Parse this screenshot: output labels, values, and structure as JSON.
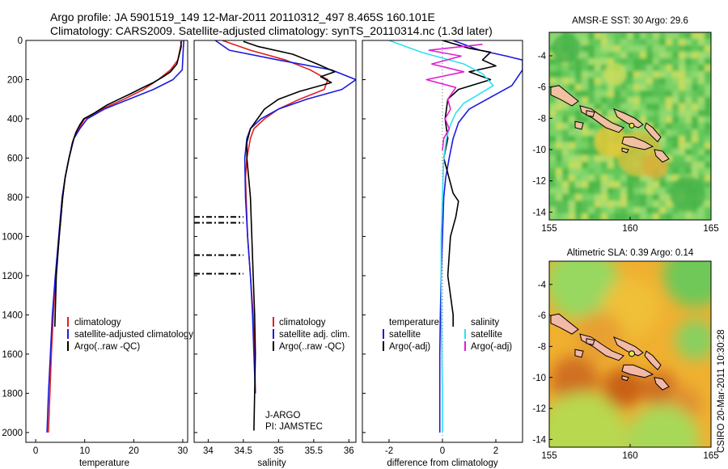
{
  "header": {
    "line1": "Argo profile: JA 5901519_149 12-Mar-2011 20110312_497 8.465S 160.101E",
    "line2": "Climatology: CARS2009. Satellite-adjusted climatology: synTS_20110314.nc (1.3d later)"
  },
  "credit": "CSIRO 20-Mar-2011 10:30:28",
  "colors": {
    "red": "#e02020",
    "blue": "#1a1ae0",
    "black": "#000000",
    "cyan": "#30e0f0",
    "magenta": "#e020d0"
  },
  "chart_data": [
    {
      "type": "line",
      "xlabel": "temperature",
      "xlim": [
        -2,
        31
      ],
      "ylim": [
        2050,
        0
      ],
      "xticks": [
        0,
        10,
        20,
        30
      ],
      "yticks": [
        0,
        200,
        400,
        600,
        800,
        1000,
        1200,
        1400,
        1600,
        1800,
        2000
      ],
      "legend": {
        "placement": "bottom-left",
        "entries": [
          "climatology",
          "satellite-adjusted climatology",
          "Argo(..raw -QC)"
        ]
      },
      "series": [
        {
          "name": "climatology",
          "color": "red",
          "x": [
            29.8,
            29.4,
            29.0,
            27.5,
            25.0,
            22.0,
            18.0,
            13.5,
            10.0,
            8.8,
            7.8,
            6.8,
            6.0,
            5.5,
            4.8,
            4.1,
            3.6,
            3.2,
            2.9,
            2.6
          ],
          "y": [
            0,
            50,
            100,
            150,
            200,
            250,
            300,
            350,
            400,
            450,
            500,
            600,
            700,
            800,
            1000,
            1200,
            1400,
            1600,
            1800,
            2000
          ]
        },
        {
          "name": "satellite-adjusted climatology",
          "color": "blue",
          "x": [
            30.2,
            30.1,
            30.0,
            29.9,
            28.0,
            24.0,
            19.0,
            14.0,
            10.5,
            9.0,
            7.8,
            6.8,
            6.0,
            5.4,
            4.7,
            4.0,
            3.4,
            3.0,
            2.6,
            2.3
          ],
          "y": [
            0,
            50,
            100,
            150,
            200,
            250,
            300,
            350,
            400,
            450,
            500,
            600,
            700,
            800,
            1000,
            1200,
            1400,
            1600,
            1800,
            2000
          ]
        },
        {
          "name": "Argo(..raw -QC)",
          "color": "black",
          "x": [
            29.6,
            29.7,
            29.3,
            28.8,
            27.5,
            26.0,
            24.0,
            21.5,
            19.5,
            17.0,
            14.5,
            12.0,
            9.8,
            9.0,
            8.2,
            7.5,
            6.8,
            6.0,
            5.5,
            4.8,
            4.2,
            3.9
          ],
          "y": [
            5,
            30,
            70,
            120,
            160,
            185,
            215,
            245,
            270,
            300,
            330,
            370,
            400,
            430,
            470,
            520,
            600,
            700,
            800,
            1000,
            1200,
            1460
          ]
        }
      ]
    },
    {
      "type": "line",
      "xlabel": "salinity",
      "xlim": [
        33.8,
        36.1
      ],
      "ylim": [
        2050,
        0
      ],
      "xticks": [
        34,
        34.5,
        35,
        35.5,
        36
      ],
      "legend": {
        "placement": "bottom-left",
        "entries": [
          "climatology",
          "satellite adj. clim.",
          "Argo(..raw -QC)"
        ]
      },
      "annotations": [
        "J-ARGO",
        "PI: JAMSTEC"
      ],
      "series": [
        {
          "name": "climatology",
          "color": "red",
          "x": [
            34.2,
            34.6,
            35.1,
            35.45,
            35.7,
            35.65,
            35.3,
            35.0,
            34.8,
            34.65,
            34.6,
            34.55,
            34.53,
            34.54,
            34.56,
            34.6,
            34.64,
            34.66,
            34.67
          ],
          "y": [
            0,
            50,
            100,
            150,
            200,
            250,
            300,
            350,
            400,
            450,
            500,
            600,
            700,
            800,
            1000,
            1200,
            1400,
            1600,
            1800
          ]
        },
        {
          "name": "satellite adj. clim.",
          "color": "blue",
          "x": [
            34.1,
            34.3,
            35.0,
            35.75,
            36.1,
            35.9,
            35.4,
            35.0,
            34.75,
            34.6,
            34.55,
            34.52,
            34.53,
            34.56,
            34.6,
            34.63,
            34.65,
            34.67
          ],
          "y": [
            0,
            50,
            100,
            150,
            200,
            250,
            300,
            350,
            400,
            450,
            500,
            600,
            800,
            1000,
            1200,
            1400,
            1600,
            1800
          ]
        },
        {
          "name": "Argo(..raw -QC)",
          "color": "black",
          "x": [
            34.5,
            34.7,
            35.2,
            35.55,
            35.8,
            35.6,
            35.75,
            35.3,
            35.0,
            34.8,
            34.7,
            34.6,
            34.55,
            34.55,
            34.6,
            34.62,
            34.64,
            34.66,
            34.67,
            34.66,
            34.65
          ],
          "y": [
            5,
            30,
            70,
            120,
            160,
            185,
            215,
            260,
            300,
            350,
            400,
            450,
            520,
            600,
            800,
            1000,
            1200,
            1400,
            1600,
            1800,
            1990
          ]
        }
      ],
      "flag_depths": [
        900,
        930,
        1095,
        1190
      ]
    },
    {
      "type": "line",
      "xlabel": "difference from climatology",
      "xlim": [
        -3,
        3
      ],
      "ylim": [
        2050,
        0
      ],
      "xticks": [
        -2,
        0,
        2
      ],
      "legend": {
        "placement": "bottom",
        "groups": [
          {
            "title": "temperature",
            "entries": [
              "satellite",
              "Argo(-adj)"
            ]
          },
          {
            "title": "salinity",
            "entries": [
              "satellite",
              "Argo(-adj)"
            ]
          }
        ]
      },
      "series": [
        {
          "name": "temperature satellite",
          "color": "blue",
          "x": [
            0.4,
            1.4,
            2.4,
            3.0,
            3.0,
            2.6,
            1.0,
            0.6,
            0.4,
            0.25,
            0.12,
            0.05,
            0.0,
            -0.05,
            -0.08,
            -0.1,
            -0.1,
            -0.1
          ],
          "y": [
            0,
            50,
            80,
            100,
            150,
            230,
            350,
            420,
            500,
            600,
            700,
            800,
            1000,
            1200,
            1400,
            1600,
            1800,
            2000
          ]
        },
        {
          "name": "temperature Argo(-adj)",
          "color": "black",
          "x": [
            0.0,
            1.0,
            1.8,
            1.5,
            2.0,
            1.0,
            1.8,
            0.6,
            0.2,
            0.1,
            0.2,
            0.05,
            0.4,
            0.6,
            0.5,
            0.3,
            0.2,
            0.4,
            0.4
          ],
          "y": [
            0,
            40,
            60,
            100,
            130,
            160,
            200,
            250,
            300,
            400,
            500,
            600,
            780,
            820,
            900,
            1000,
            1200,
            1400,
            1460
          ]
        },
        {
          "name": "salinity satellite",
          "color": "cyan",
          "x": [
            -2.0,
            -0.8,
            0.8,
            1.5,
            1.9,
            1.3,
            0.8,
            0.5,
            0.3,
            0.15,
            0.05,
            0.0,
            -0.05,
            -0.05,
            -0.03,
            0.0,
            0.0
          ],
          "y": [
            0,
            60,
            120,
            170,
            230,
            280,
            320,
            370,
            430,
            500,
            600,
            800,
            1000,
            1200,
            1500,
            1800,
            2000
          ]
        },
        {
          "name": "salinity Argo(-adj)",
          "color": "magenta",
          "x": [
            1.5,
            -0.5,
            0.7,
            -0.4,
            0.8,
            -0.6,
            0.5,
            0.2,
            0.3,
            0.1,
            0.25,
            0.05,
            0.0
          ],
          "y": [
            20,
            50,
            80,
            120,
            160,
            200,
            240,
            300,
            350,
            400,
            450,
            500,
            560
          ]
        }
      ]
    },
    {
      "type": "heatmap",
      "title": "AMSR-E SST: 30 Argo: 29.6",
      "xlim": [
        155,
        165
      ],
      "ylim": [
        -14.5,
        -2.5
      ],
      "xticks": [
        155,
        160,
        165
      ],
      "yticks": [
        -4,
        -6,
        -8,
        -10,
        -12,
        -14
      ],
      "argo_position": [
        160.101,
        -8.465
      ]
    },
    {
      "type": "heatmap",
      "title": "Altimetric SLA: 0.39 Argo: 0.14",
      "xlim": [
        155,
        165
      ],
      "ylim": [
        -14.5,
        -2.5
      ],
      "xticks": [
        155,
        160,
        165
      ],
      "yticks": [
        -4,
        -6,
        -8,
        -10,
        -12,
        -14
      ],
      "argo_position": [
        160.101,
        -8.465
      ]
    }
  ]
}
